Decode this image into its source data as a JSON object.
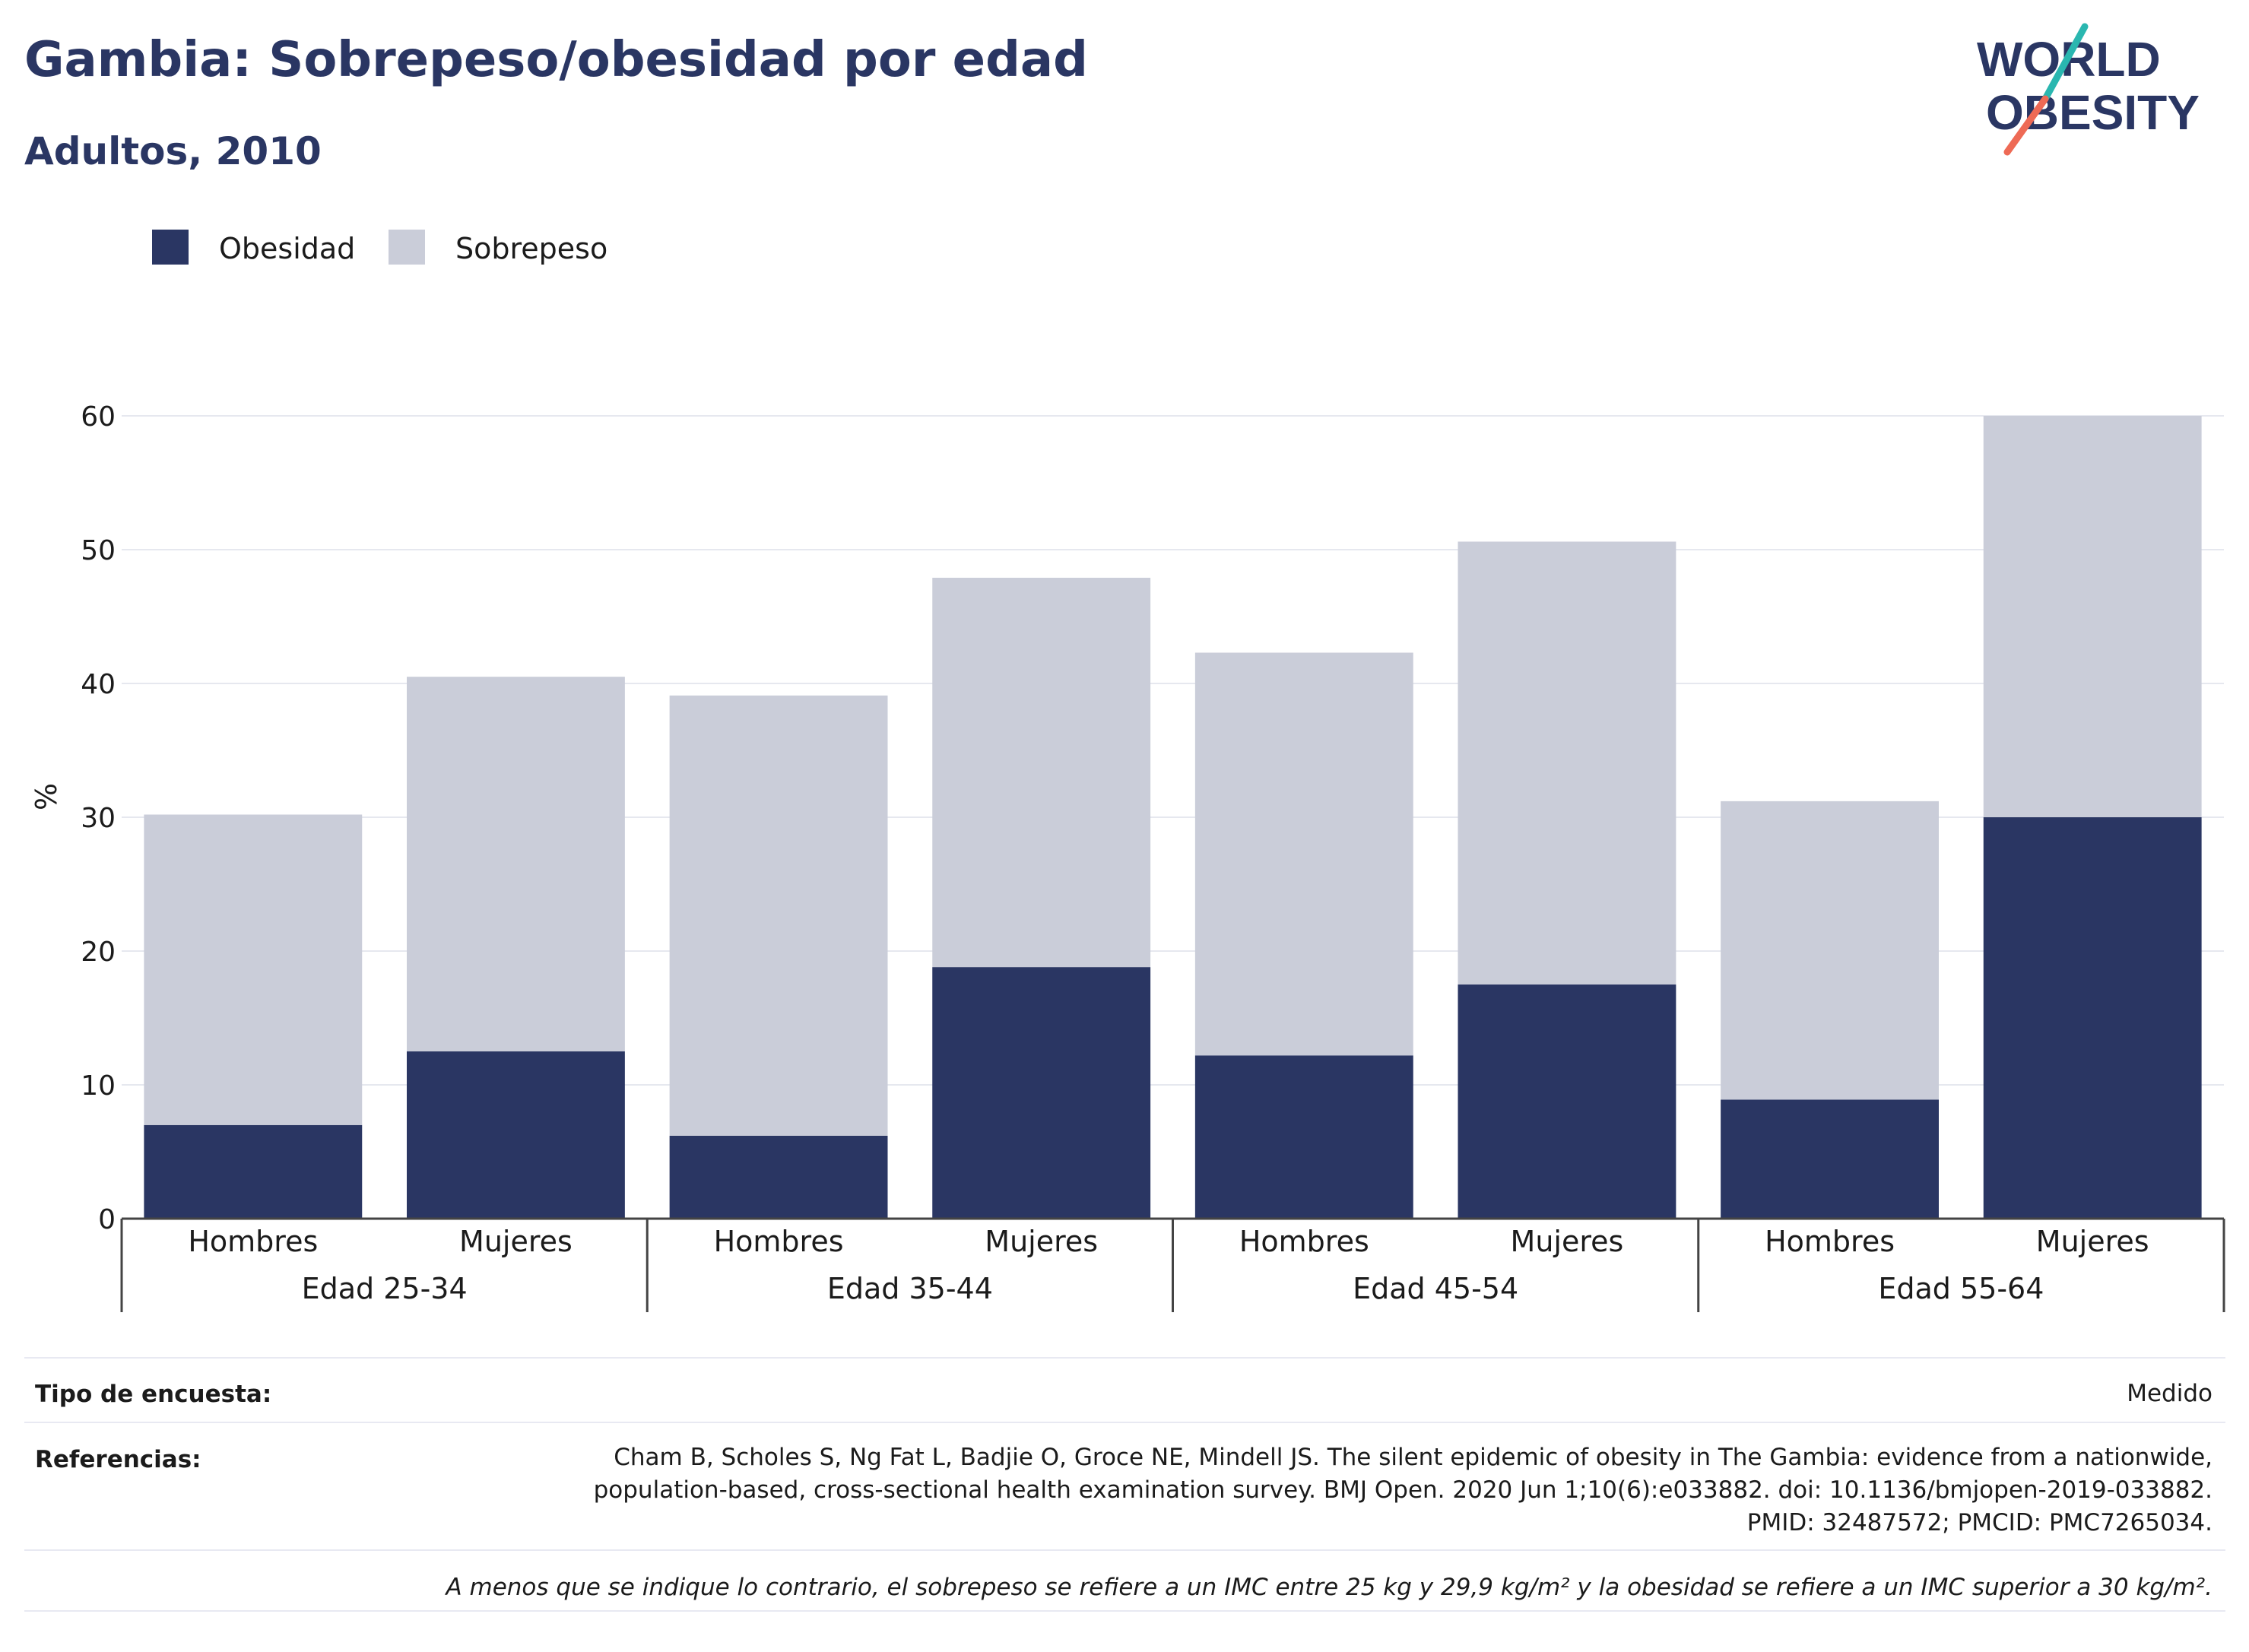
{
  "title": "Gambia: Sobrepeso/obesidad por edad",
  "subtitle": "Adultos, 2010",
  "logo": {
    "line1": "WORLD",
    "line2": "OBESITY",
    "accent1": "#2ab7b0",
    "accent2": "#ee6a55",
    "color": "#2a3663"
  },
  "colors": {
    "obesity": "#2a3663",
    "overweight": "#cacdd9",
    "grid": "#e6e8ef",
    "axis": "#444444"
  },
  "chart_data": {
    "type": "bar",
    "stacked": true,
    "ylabel": "%",
    "ylim": [
      0,
      60
    ],
    "yticks": [
      0,
      10,
      20,
      30,
      40,
      50,
      60
    ],
    "grid": true,
    "legend_position": "top-left",
    "groups": [
      "Edad 25-34",
      "Edad 35-44",
      "Edad 45-54",
      "Edad 55-64"
    ],
    "categories": [
      "Hombres",
      "Mujeres",
      "Hombres",
      "Mujeres",
      "Hombres",
      "Mujeres",
      "Hombres",
      "Mujeres"
    ],
    "series": [
      {
        "name": "Obesidad",
        "color": "#2a3663",
        "values": [
          7.0,
          12.5,
          6.2,
          18.8,
          12.2,
          17.5,
          8.9,
          30.0
        ]
      },
      {
        "name": "Sobrepeso",
        "color": "#cacdd9",
        "values": [
          23.2,
          28.0,
          32.9,
          29.1,
          30.1,
          33.1,
          22.3,
          30.0
        ]
      }
    ]
  },
  "footer": {
    "survey_label": "Tipo de encuesta:",
    "survey_value": "Medido",
    "references_label": "Referencias:",
    "references_value": "Cham B, Scholes S, Ng Fat L, Badjie O, Groce NE, Mindell JS. The silent epidemic of obesity in The Gambia: evidence from a nationwide, population-based, cross-sectional health examination survey. BMJ Open. 2020 Jun 1;10(6):e033882. doi: 10.1136/bmjopen-2019-033882. PMID: 32487572; PMCID: PMC7265034.",
    "note": "A menos que se indique lo contrario, el sobrepeso se refiere a un IMC entre 25 kg y 29,9 kg/m² y la obesidad se refiere a un IMC superior a 30 kg/m²."
  }
}
